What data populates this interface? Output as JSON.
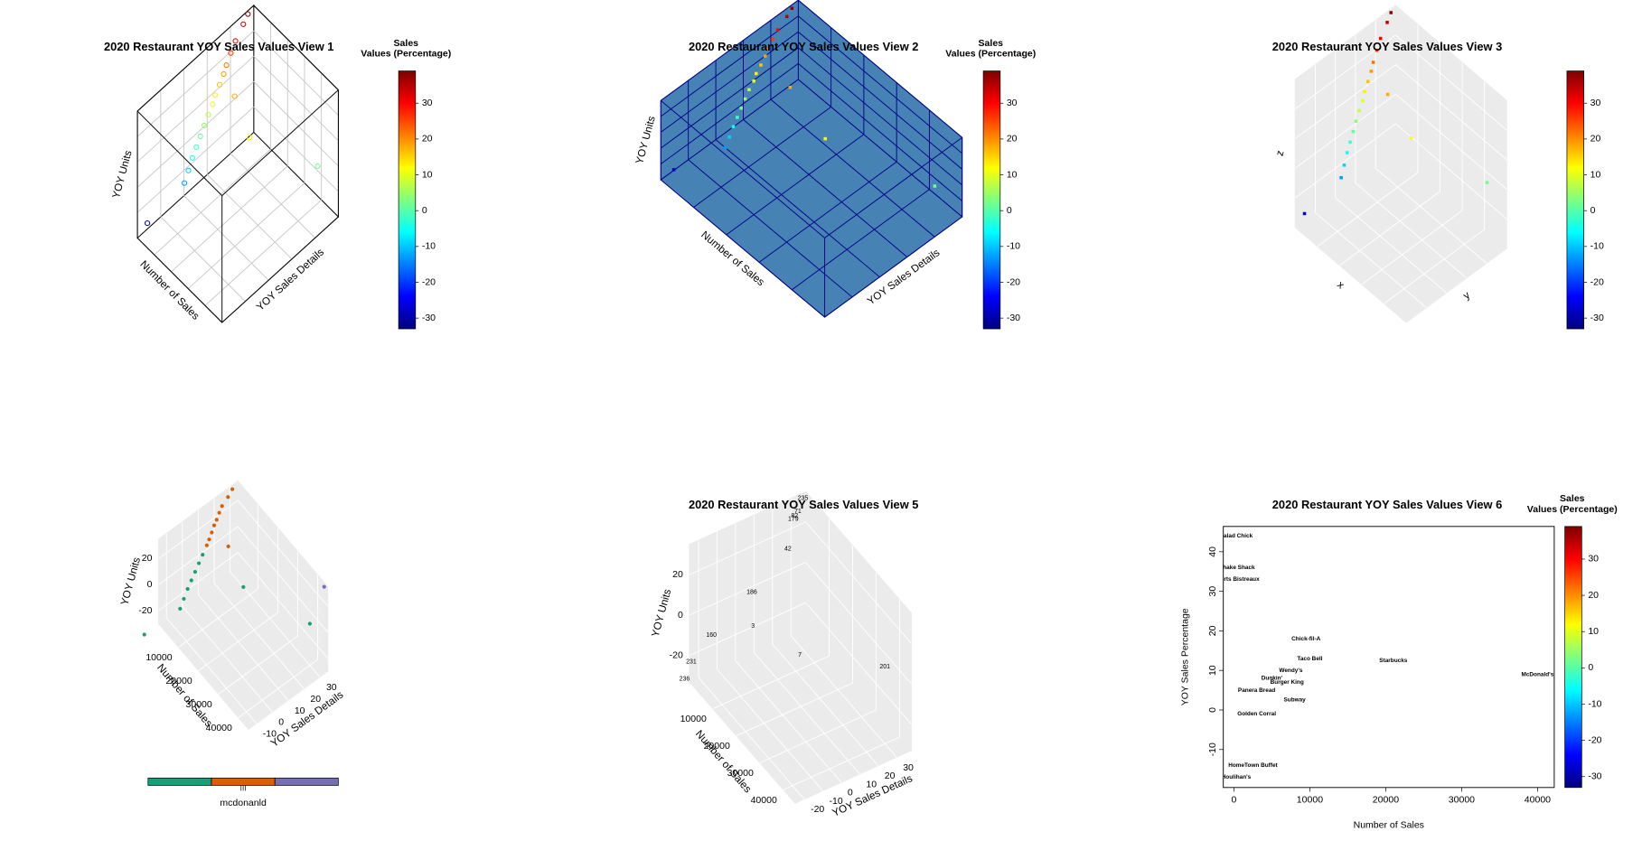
{
  "chart_data": [
    {
      "type": "scatter3d",
      "title": "2020 Restaurant YOY Sales Values View 1",
      "xlabel": "Number of Sales",
      "ylabel": "YOY Sales Details",
      "zlabel": "YOY Units",
      "marker": "circle",
      "x": [
        400,
        600,
        800,
        1000,
        1300,
        1600,
        2000,
        2300,
        2700,
        3000,
        3500,
        4000,
        4500,
        5000,
        5500,
        6000,
        800,
        9500,
        21000,
        40000
      ],
      "y": [
        36,
        33,
        28,
        25,
        22,
        20,
        17,
        14,
        12,
        9,
        6,
        3,
        0,
        -3,
        -6,
        -9,
        -25,
        17,
        12,
        30
      ],
      "z": [
        38,
        35,
        30,
        26,
        22,
        19,
        16,
        13,
        10,
        7,
        4,
        1,
        -2,
        -5,
        -9,
        -13,
        -28,
        18,
        12,
        2
      ],
      "xlim": [
        0,
        42000
      ],
      "ylim": [
        -30,
        40
      ],
      "zlim": [
        -33,
        39
      ],
      "colorbar": {
        "title": [
          "Sales",
          "Values (Percentage)"
        ],
        "lim": [
          -33,
          39
        ],
        "ticks": [
          -30,
          -20,
          -10,
          0,
          10,
          20,
          30
        ],
        "colors": [
          "#00007f",
          "#0000ff",
          "#007fff",
          "#00ffff",
          "#7fff7f",
          "#ffff00",
          "#ff7f00",
          "#ff0000",
          "#7f0000"
        ]
      }
    },
    {
      "type": "scatter3d",
      "title": "2020 Restaurant YOY Sales Values View 2",
      "xlabel": "Number of Sales",
      "ylabel": "YOY Sales Details",
      "zlabel": "YOY Units",
      "marker": "square",
      "x": [
        400,
        600,
        800,
        1000,
        1300,
        1600,
        2000,
        2300,
        2700,
        3000,
        3500,
        4000,
        4500,
        5000,
        5500,
        6000,
        800,
        9500,
        21000,
        40000
      ],
      "y": [
        36,
        33,
        28,
        25,
        22,
        20,
        17,
        14,
        12,
        9,
        6,
        3,
        0,
        -3,
        -6,
        -9,
        -25,
        17,
        12,
        30
      ],
      "z": [
        38,
        35,
        30,
        26,
        22,
        19,
        16,
        13,
        10,
        7,
        4,
        1,
        -2,
        -5,
        -9,
        -13,
        -28,
        18,
        12,
        2
      ],
      "xlim": [
        0,
        42000
      ],
      "ylim": [
        -30,
        40
      ],
      "zlim": [
        -33,
        39
      ],
      "colorbar": {
        "title": [
          "Sales",
          "Values (Percentage)"
        ],
        "lim": [
          -33,
          39
        ],
        "ticks": [
          -30,
          -20,
          -10,
          0,
          10,
          20,
          30
        ],
        "colors": [
          "#00007f",
          "#0000ff",
          "#007fff",
          "#00ffff",
          "#7fff7f",
          "#ffff00",
          "#ff7f00",
          "#ff0000",
          "#7f0000"
        ]
      }
    },
    {
      "type": "scatter3d",
      "title": "2020 Restaurant YOY Sales Values View 3",
      "xlabel": "x",
      "ylabel": "y",
      "zlabel": "z",
      "marker": "square",
      "x": [
        400,
        600,
        800,
        1000,
        1300,
        1600,
        2000,
        2300,
        2700,
        3000,
        3500,
        4000,
        4500,
        5000,
        5500,
        6000,
        800,
        9500,
        21000,
        40000
      ],
      "y": [
        36,
        33,
        28,
        25,
        22,
        20,
        17,
        14,
        12,
        9,
        6,
        3,
        0,
        -3,
        -6,
        -9,
        -25,
        17,
        12,
        30
      ],
      "z": [
        38,
        35,
        30,
        26,
        22,
        19,
        16,
        13,
        10,
        7,
        4,
        1,
        -2,
        -5,
        -9,
        -13,
        -28,
        18,
        12,
        2
      ],
      "xlim": [
        0,
        42000
      ],
      "ylim": [
        -30,
        40
      ],
      "zlim": [
        -33,
        39
      ],
      "colorbar": {
        "lim": [
          -33,
          39
        ],
        "ticks": [
          -30,
          -20,
          -10,
          0,
          10,
          20,
          30
        ],
        "colors": [
          "#00007f",
          "#0000ff",
          "#007fff",
          "#00ffff",
          "#7fff7f",
          "#ffff00",
          "#ff7f00",
          "#ff0000",
          "#7f0000"
        ]
      }
    },
    {
      "type": "scatter3d",
      "xlabel": "Number of Sales",
      "ylabel": "YOY Sales Details",
      "zlabel": "YOY Units",
      "marker": "dot",
      "series": [
        {
          "color": "#1b9e77",
          "x": [
            3000,
            3500,
            4000,
            4500,
            5000,
            5500,
            6000,
            800,
            21000,
            40000
          ],
          "y": [
            9,
            6,
            3,
            0,
            -3,
            -6,
            -9,
            -25,
            12,
            30
          ],
          "z": [
            7,
            4,
            1,
            -2,
            -5,
            -9,
            -13,
            -28,
            12,
            2
          ]
        },
        {
          "color": "#d95f02",
          "x": [
            400,
            600,
            800,
            1000,
            1300,
            1600,
            2000,
            2300,
            2700,
            9500
          ],
          "y": [
            31,
            28,
            24,
            22,
            20,
            18,
            16,
            14,
            12,
            17
          ],
          "z": [
            33,
            30,
            27,
            24,
            21,
            19,
            16,
            13,
            11,
            18
          ]
        },
        {
          "color": "#7570b3",
          "x": [
            44000
          ],
          "y": [
            34
          ],
          "z": [
            34
          ]
        }
      ],
      "xlim": [
        0,
        45000
      ],
      "ylim": [
        -15,
        35
      ],
      "zlim": [
        -30,
        35
      ],
      "xticks": [
        10000,
        20000,
        30000,
        40000
      ],
      "yticks": [
        -10,
        0,
        10,
        20,
        30
      ],
      "zticks": [
        -20,
        0,
        20
      ],
      "legend": {
        "title": "mcdonanld"
      }
    },
    {
      "type": "scatter3d",
      "title": "2020 Restaurant YOY Sales Values View 5",
      "xlabel": "Number of Sales",
      "ylabel": "YOY Sales Details",
      "zlabel": "YOY Units",
      "marker": "label",
      "series": [
        {
          "color": "#d95f02",
          "x": [
            1000,
            600,
            800,
            1500,
            3000
          ],
          "y": [
            30,
            33,
            31,
            -15,
            5
          ],
          "z": [
            26,
            28,
            27,
            -12,
            3
          ],
          "labels": [
            "179",
            "71",
            "82",
            "160",
            "186"
          ]
        },
        {
          "color": "#3a9bc4",
          "x": [
            400,
            40000,
            800,
            300,
            5000,
            9000,
            25000
          ],
          "y": [
            36,
            30,
            -25,
            -28,
            22,
            -2,
            3
          ],
          "z": [
            33,
            5,
            -22,
            -30,
            20,
            -3,
            2
          ],
          "labels": [
            "235",
            "201",
            "231",
            "236",
            "42",
            "3",
            "7"
          ]
        }
      ],
      "xlim": [
        0,
        45000
      ],
      "ylim": [
        -25,
        38
      ],
      "zlim": [
        -33,
        35
      ],
      "xticks": [
        10000,
        20000,
        30000,
        40000
      ],
      "yticks": [
        -20,
        -10,
        0,
        10,
        20,
        30
      ],
      "zticks": [
        -20,
        0,
        20
      ]
    },
    {
      "type": "text-scatter",
      "title": "2020 Restaurant YOY Sales Values View 6",
      "xlabel": "Number of Sales",
      "ylabel": "YOY Sales Percentage",
      "labels": [
        "Salad Chick",
        "Shake Shack",
        "Sports Bistreaux",
        "Chick-fil-A",
        "Taco Bell",
        "Starbucks",
        "McDonald's",
        "Burger King",
        "Subway",
        "Golden Corral",
        "HomeTown Buffet",
        "Houlihan's",
        "Wendy's",
        "Dunkin'",
        "Panera Bread"
      ],
      "x": [
        300,
        400,
        300,
        9500,
        10000,
        21000,
        40000,
        7000,
        8000,
        3000,
        2500,
        300,
        7500,
        5000,
        3000
      ],
      "y": [
        44,
        36,
        33,
        18,
        13,
        12.5,
        9,
        7,
        2.5,
        -1,
        -14,
        -17,
        10,
        8,
        5
      ],
      "xlim": [
        -1400,
        42200
      ],
      "ylim": [
        -19.6,
        46.4
      ],
      "xticks": [
        0,
        10000,
        20000,
        30000,
        40000
      ],
      "yticks": [
        -10,
        0,
        10,
        20,
        30,
        40
      ],
      "colorbar": {
        "title": [
          "Sales",
          "Values (Percentage)"
        ],
        "lim": [
          -33,
          39
        ],
        "ticks": [
          -30,
          -20,
          -10,
          0,
          10,
          20,
          30
        ],
        "colors": [
          "#00007f",
          "#0000ff",
          "#007fff",
          "#00ffff",
          "#7fff7f",
          "#ffff00",
          "#ff7f00",
          "#ff0000",
          "#7f0000"
        ]
      }
    }
  ]
}
